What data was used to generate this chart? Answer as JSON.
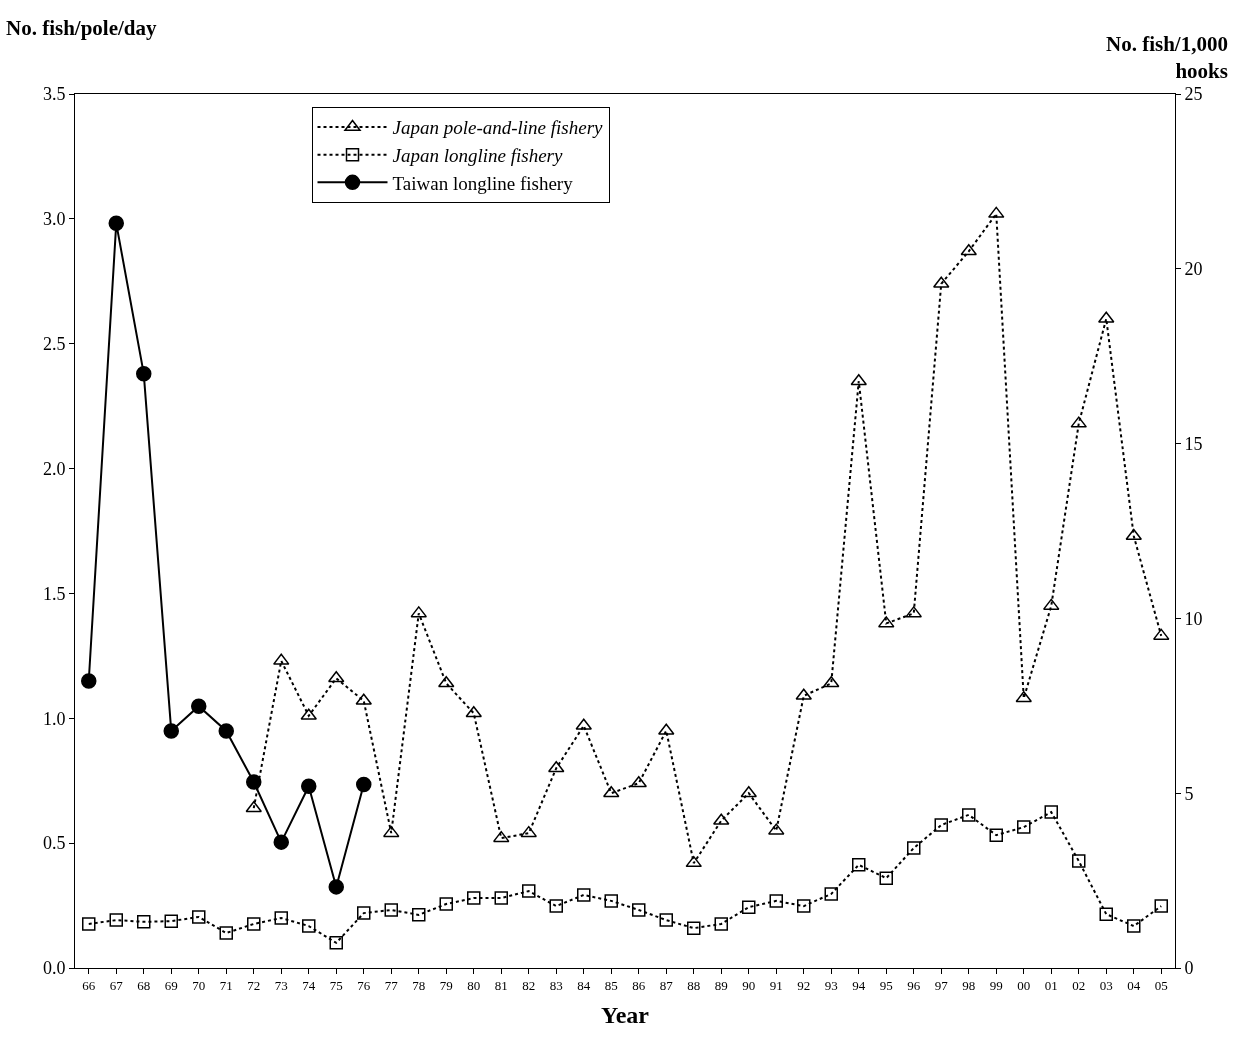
{
  "chart_data": {
    "type": "line",
    "xlabel": "Year",
    "ylabel": "No. fish/pole/day",
    "y2label": "No. fish/1,000 hooks",
    "categories": [
      "66",
      "67",
      "68",
      "69",
      "70",
      "71",
      "72",
      "73",
      "74",
      "75",
      "76",
      "77",
      "78",
      "79",
      "80",
      "81",
      "82",
      "83",
      "84",
      "85",
      "86",
      "87",
      "88",
      "89",
      "90",
      "91",
      "92",
      "93",
      "94",
      "95",
      "96",
      "97",
      "98",
      "99",
      "00",
      "01",
      "02",
      "03",
      "04",
      "05"
    ],
    "ylim": [
      0,
      3.5
    ],
    "yticks": [
      {
        "value": 0,
        "label": "0.0"
      },
      {
        "value": 0.5,
        "label": "0.5"
      },
      {
        "value": 1,
        "label": "1.0"
      },
      {
        "value": 1.5,
        "label": "1.5"
      },
      {
        "value": 2,
        "label": "2.0"
      },
      {
        "value": 2.5,
        "label": "2.5"
      },
      {
        "value": 3,
        "label": "3.0"
      },
      {
        "value": 3.5,
        "label": "3.5"
      }
    ],
    "y2lim": [
      0,
      25
    ],
    "y2ticks": [
      0,
      5,
      10,
      15,
      20,
      25
    ],
    "grid": false,
    "legend": "top",
    "series": [
      {
        "name": "Japan pole-and-line fishery",
        "color": "#000000",
        "marker": "triangle",
        "line_style": "dotted",
        "values": [
          null,
          null,
          null,
          null,
          null,
          null,
          0.64,
          1.23,
          1.01,
          1.16,
          1.07,
          0.54,
          1.42,
          1.14,
          1.02,
          0.52,
          0.54,
          0.8,
          0.97,
          0.7,
          0.74,
          0.95,
          0.42,
          0.59,
          0.7,
          0.55,
          1.09,
          1.14,
          2.35,
          1.38,
          1.42,
          2.74,
          2.87,
          3.02,
          1.08,
          1.45,
          2.18,
          2.6,
          1.73,
          1.33
        ]
      },
      {
        "name": "Japan longline fishery",
        "color": "#000000",
        "marker": "square",
        "line_style": "dotted",
        "axis": "y2",
        "values": [
          1.26,
          1.37,
          1.32,
          1.34,
          1.46,
          1.0,
          1.26,
          1.43,
          1.2,
          0.72,
          1.57,
          1.66,
          1.52,
          1.83,
          2.0,
          2.0,
          2.2,
          1.77,
          2.09,
          1.92,
          1.66,
          1.37,
          1.14,
          1.26,
          1.74,
          1.92,
          1.77,
          2.12,
          2.95,
          2.57,
          3.43,
          4.09,
          4.38,
          3.8,
          4.03,
          4.46,
          3.06,
          1.54,
          1.2,
          1.77
        ]
      },
      {
        "name": "Taiwan longline fishery",
        "color": "#000000",
        "marker": "circle",
        "line_style": "solid",
        "axis": "y2",
        "values": [
          8.21,
          21.3,
          17.0,
          6.78,
          7.49,
          6.78,
          5.32,
          3.6,
          5.2,
          2.32,
          5.25,
          null,
          null,
          null,
          null,
          null,
          null,
          null,
          null,
          null,
          null,
          null,
          null,
          null,
          null,
          null,
          null,
          null,
          null,
          null,
          null,
          null,
          null,
          null,
          null,
          null,
          null,
          null,
          null,
          null
        ]
      }
    ]
  }
}
